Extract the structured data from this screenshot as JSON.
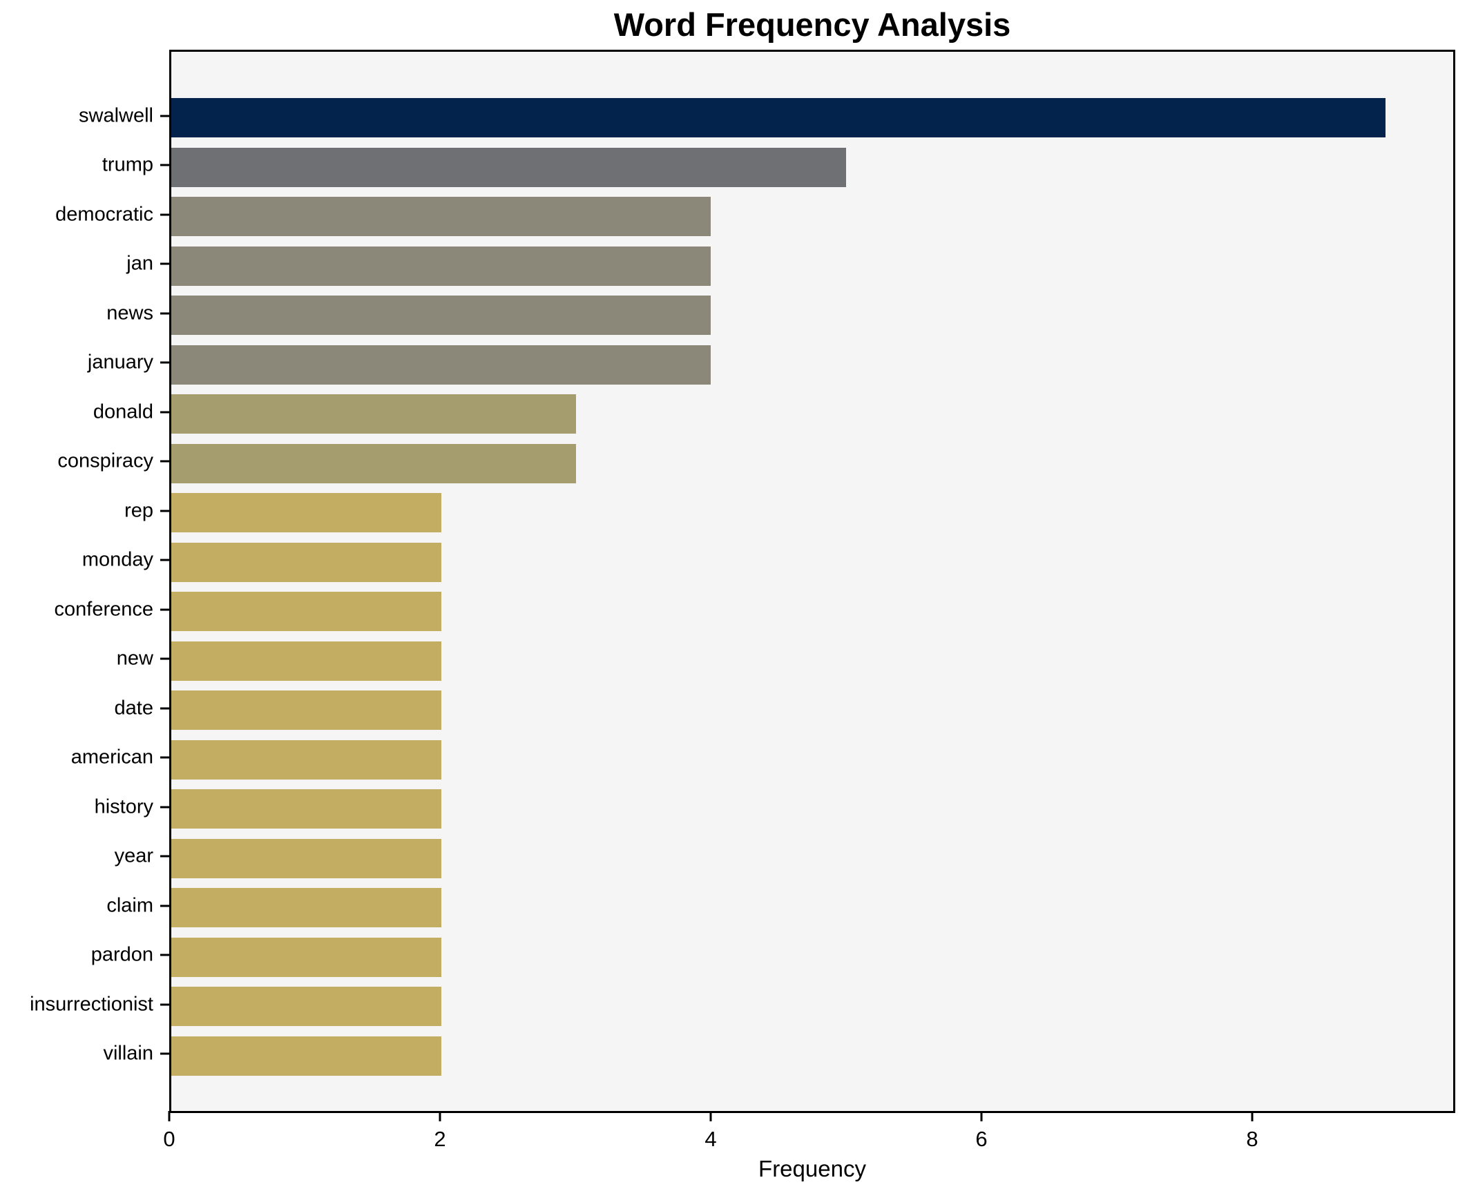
{
  "title": "Word Frequency Analysis",
  "x_axis_label": "Frequency",
  "chart_data": {
    "type": "bar",
    "orientation": "horizontal",
    "title": "Word Frequency Analysis",
    "xlabel": "Frequency",
    "ylabel": "",
    "xlim": [
      0,
      9.5
    ],
    "x_ticks": [
      0,
      2,
      4,
      6,
      8
    ],
    "grid": false,
    "legend": "none",
    "plot_background": "#f5f5f6",
    "figure_background": "#ffffff",
    "spine_color": "#000000",
    "categories": [
      "swalwell",
      "trump",
      "democratic",
      "jan",
      "news",
      "january",
      "donald",
      "conspiracy",
      "rep",
      "monday",
      "conference",
      "new",
      "date",
      "american",
      "history",
      "year",
      "claim",
      "pardon",
      "insurrectionist",
      "villain"
    ],
    "values": [
      9,
      5,
      4,
      4,
      4,
      4,
      3,
      3,
      2,
      2,
      2,
      2,
      2,
      2,
      2,
      2,
      2,
      2,
      2,
      2
    ],
    "bar_colors": [
      "#03234c",
      "#6f7073",
      "#8b8879",
      "#8b8879",
      "#8b8879",
      "#8b8879",
      "#a69d6f",
      "#a69d6f",
      "#c2ad62",
      "#c2ad62",
      "#c2ad62",
      "#c2ad62",
      "#c2ad62",
      "#c2ad62",
      "#c2ad62",
      "#c2ad62",
      "#c2ad62",
      "#c2ad62",
      "#c2ad62",
      "#c2ad62"
    ]
  }
}
